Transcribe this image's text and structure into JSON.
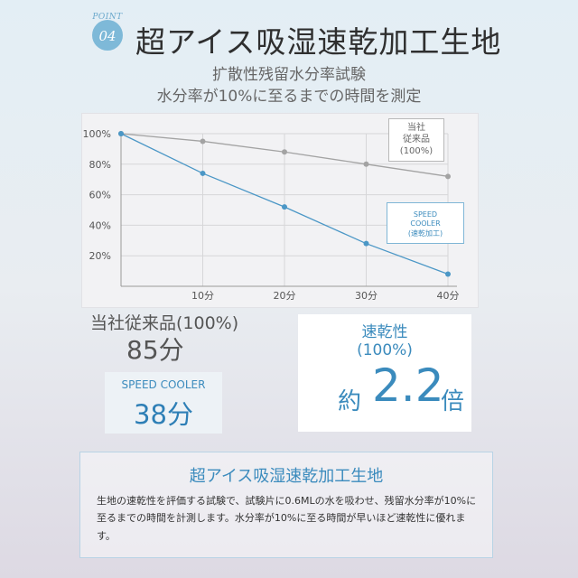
{
  "header": {
    "badge_word": "POINT",
    "badge_number": "04",
    "title": "超アイス吸湿速乾加工生地",
    "subtitle_1": "扩散性残留水分率試験",
    "subtitle_2": "水分率が10%に至るまでの時間を測定"
  },
  "chart_data": {
    "type": "line",
    "x": [
      0,
      10,
      20,
      30,
      40
    ],
    "x_tick_labels": [
      "10分",
      "20分",
      "30分",
      "40分"
    ],
    "y_tick_labels": [
      "100%",
      "80%",
      "60%",
      "40%",
      "20%"
    ],
    "ylim": [
      0,
      100
    ],
    "series": [
      {
        "name": "当社従来品(100%)",
        "values": [
          100,
          95,
          88,
          80,
          72
        ],
        "color": "#a3a3a3"
      },
      {
        "name": "SPEED COOLER(速乾加工)",
        "values": [
          100,
          74,
          52,
          28,
          8
        ],
        "color": "#4b97c6"
      }
    ],
    "grid": true
  },
  "legend": {
    "standard": [
      "当社",
      "従来品",
      "(100%)"
    ],
    "speed": [
      "SPEED",
      "COOLER",
      "(速乾加工)"
    ]
  },
  "results": {
    "standard_label": "当社従来品(100%)",
    "standard_value": "85分",
    "speed_label": "SPEED COOLER",
    "speed_value": "38分",
    "ratio_label_1": "速乾性",
    "ratio_label_2": "(100%)",
    "ratio_prefix": "約",
    "ratio_number": "2.2",
    "ratio_suffix": "倍"
  },
  "description": {
    "title": "超アイス吸湿速乾加工生地",
    "text": "生地の速乾性を評価する試験で、試験片に0.6MLの水を吸わせ、残留水分率が10%に至るまでの時間を計測します。水分率が10%に至る時間が早いほど速乾性に優れます。"
  }
}
